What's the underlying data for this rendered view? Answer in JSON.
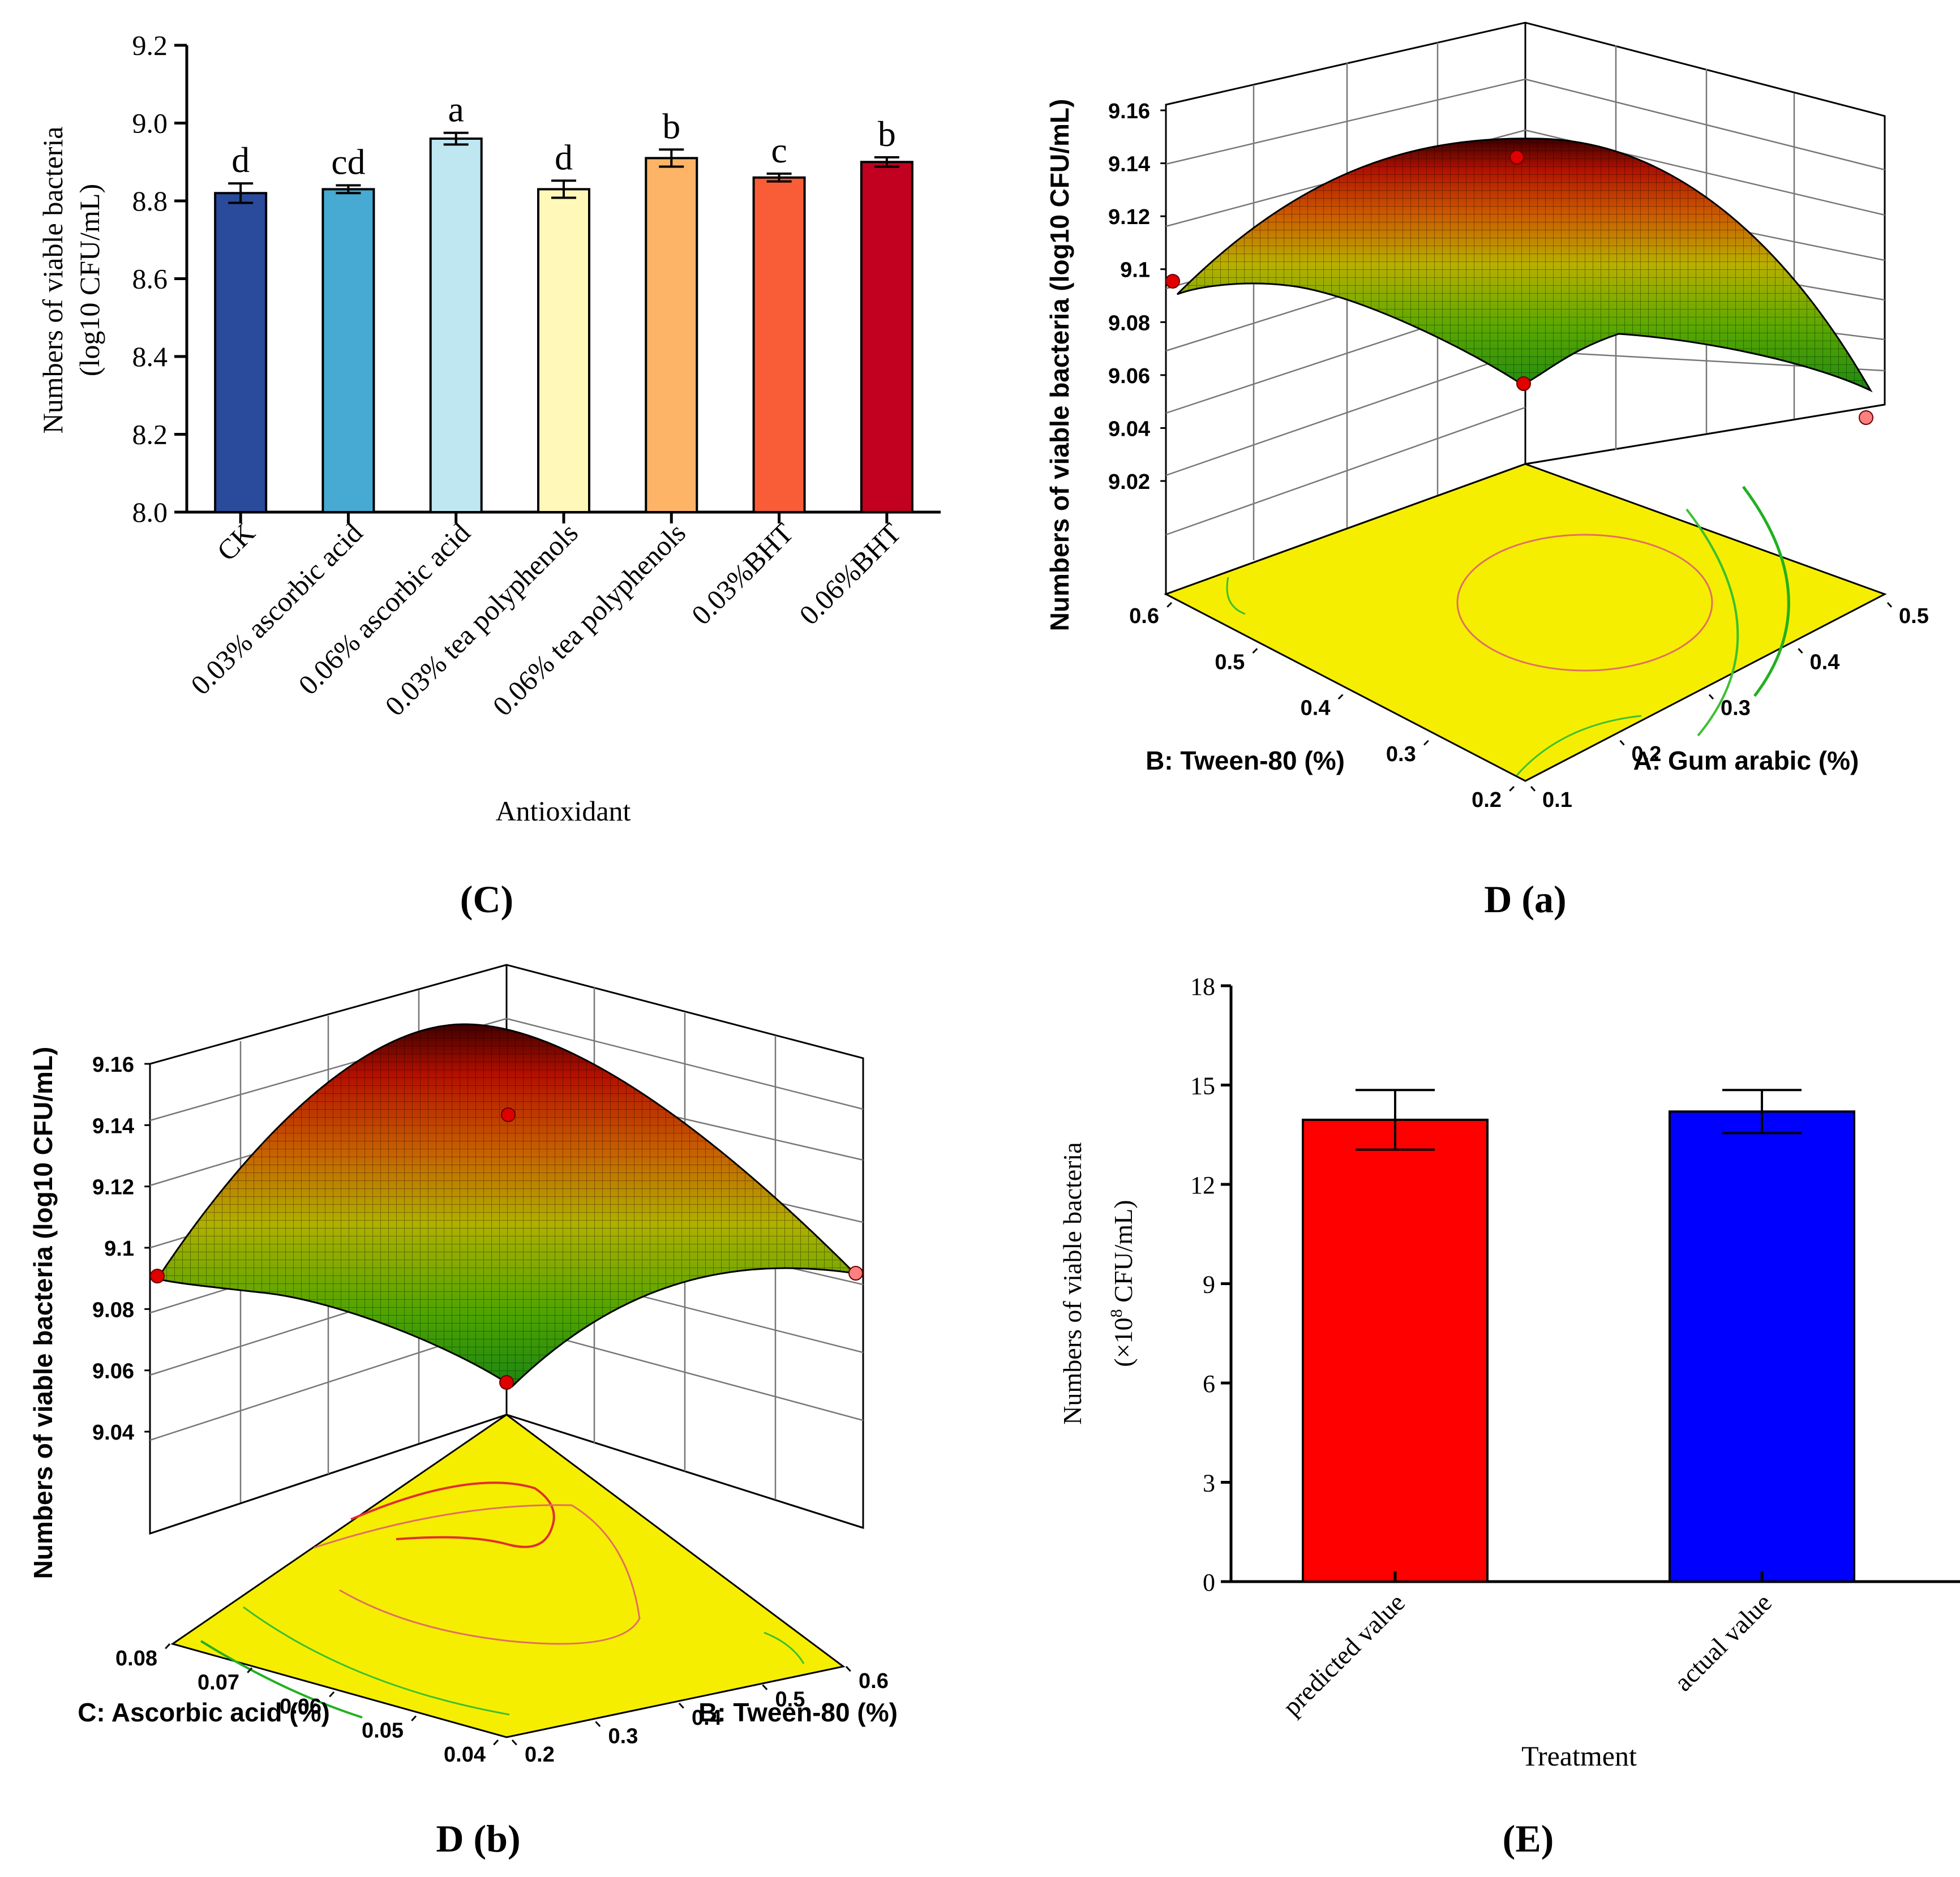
{
  "chart_data": [
    {
      "panel": "C",
      "type": "bar",
      "caption": "(C)",
      "categories": [
        "CK",
        "0.03% ascorbic acid",
        "0.06% ascorbic acid",
        "0.03% tea polyphenols",
        "0.06% tea polyphenols",
        "0.03%BHT",
        "0.06%BHT"
      ],
      "values": [
        8.82,
        8.83,
        8.96,
        8.83,
        8.91,
        8.86,
        8.9
      ],
      "errors": [
        0.025,
        0.01,
        0.015,
        0.022,
        0.022,
        0.01,
        0.012
      ],
      "significance_letters": [
        "d",
        "cd",
        "a",
        "d",
        "b",
        "c",
        "b"
      ],
      "colors": [
        "#2a4a9c",
        "#46aad2",
        "#bfe7f2",
        "#fff8b8",
        "#fdb466",
        "#f95d38",
        "#c2001f"
      ],
      "xlabel": "Antioxidant",
      "ylabel": [
        "Numbers of viable bacteria",
        "(log10 CFU/mL)"
      ],
      "ylim": [
        8.0,
        9.2
      ],
      "yticks": [
        "8.0",
        "8.2",
        "8.4",
        "8.6",
        "8.8",
        "9.0",
        "9.2"
      ],
      "grid": false
    },
    {
      "panel": "D (a)",
      "type": "surface",
      "caption": "D (a)",
      "zlabel": "Numbers of viable bacteria (log10 CFU/mL)",
      "ztick_labels": [
        "9.02",
        "9.04",
        "9.06",
        "9.08",
        "9.1",
        "9.12",
        "9.14",
        "9.16"
      ],
      "x_axis": {
        "label": "A: Gum arabic (%)",
        "ticks": [
          "0.1",
          "0.2",
          "0.3",
          "0.4",
          "0.5"
        ],
        "range": [
          0.1,
          0.5
        ]
      },
      "y_axis": {
        "label": "B: Tween-80 (%)",
        "ticks": [
          "0.2",
          "0.3",
          "0.4",
          "0.5",
          "0.6"
        ],
        "range": [
          0.2,
          0.6
        ]
      },
      "peak_z": 9.14,
      "grid": true
    },
    {
      "panel": "D (b)",
      "type": "surface",
      "caption": "D (b)",
      "zlabel": "Numbers of viable bacteria (log10 CFU/mL)",
      "ztick_labels": [
        "9.04",
        "9.06",
        "9.08",
        "9.1",
        "9.12",
        "9.14",
        "9.16"
      ],
      "x_axis": {
        "label": "B: Tween-80 (%)",
        "ticks": [
          "0.2",
          "0.3",
          "0.4",
          "0.5",
          "0.6"
        ],
        "range": [
          0.2,
          0.6
        ]
      },
      "y_axis": {
        "label": "C: Ascorbic acid (%)",
        "ticks": [
          "0.04",
          "0.05",
          "0.06",
          "0.07",
          "0.08"
        ],
        "range": [
          0.04,
          0.08
        ]
      },
      "peak_z": 9.165,
      "grid": true
    },
    {
      "panel": "E",
      "type": "bar",
      "caption": "(E)",
      "categories": [
        "predicted value",
        "actual value"
      ],
      "values": [
        13.95,
        14.2
      ],
      "errors": [
        0.9,
        0.65
      ],
      "colors": [
        "#ff0000",
        "#0000ff"
      ],
      "xlabel": "Treatment",
      "ylabel": "Numbers of viable bacteria",
      "ylabel_unit_parts": [
        "(×10",
        "8",
        " CFU/mL)"
      ],
      "ylim": [
        0,
        18
      ],
      "yticks": [
        "0",
        "3",
        "6",
        "9",
        "12",
        "15",
        "18"
      ],
      "grid": false
    }
  ]
}
